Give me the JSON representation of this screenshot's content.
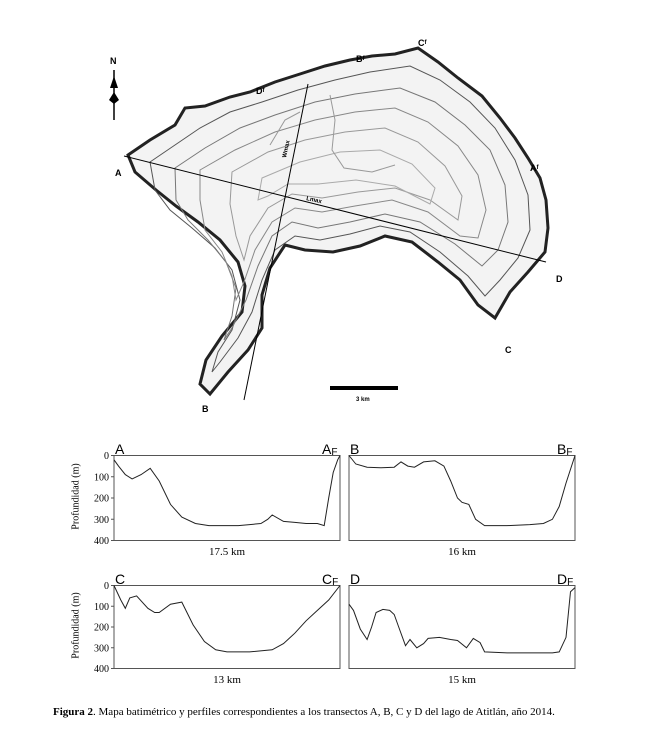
{
  "map": {
    "north_label": "N",
    "transect_labels": {
      "A": "A",
      "B": "B",
      "C": "C",
      "D": "D",
      "AF": "Aᶠ",
      "BF": "Bᶠ",
      "CF": "Cᶠ",
      "DF": "Dᶠ"
    },
    "line_labels": {
      "wmax": "Wmax",
      "lmax": "Lmax"
    },
    "scale_label": "3 km"
  },
  "chart_data": [
    {
      "type": "line",
      "start_label": "A",
      "end_label": "A",
      "end_sub": "F",
      "xlabel": "17.5 km",
      "ylabel": "Profundidad (m)",
      "ylim": [
        0,
        400
      ],
      "yticks": [
        0,
        100,
        200,
        300,
        400
      ],
      "series": [
        {
          "x": [
            0,
            0.02,
            0.05,
            0.08,
            0.12,
            0.16,
            0.2,
            0.25,
            0.3,
            0.36,
            0.42,
            0.48,
            0.55,
            0.6,
            0.65,
            0.68,
            0.7,
            0.75,
            0.8,
            0.85,
            0.9,
            0.93,
            0.95,
            0.97,
            0.99,
            1.0
          ],
          "values": [
            20,
            50,
            90,
            110,
            90,
            60,
            120,
            230,
            290,
            320,
            330,
            330,
            330,
            325,
            320,
            300,
            280,
            310,
            315,
            320,
            320,
            330,
            200,
            80,
            20,
            0
          ]
        }
      ]
    },
    {
      "type": "line",
      "start_label": "B",
      "end_label": "B",
      "end_sub": "F",
      "xlabel": "16 km",
      "ylabel": "",
      "ylim": [
        0,
        400
      ],
      "yticks": [],
      "series": [
        {
          "x": [
            0,
            0.03,
            0.08,
            0.14,
            0.2,
            0.23,
            0.26,
            0.29,
            0.33,
            0.38,
            0.42,
            0.45,
            0.48,
            0.5,
            0.53,
            0.56,
            0.6,
            0.7,
            0.8,
            0.86,
            0.9,
            0.93,
            0.96,
            1.0
          ],
          "values": [
            0,
            40,
            55,
            58,
            55,
            30,
            50,
            55,
            30,
            25,
            50,
            120,
            200,
            220,
            230,
            300,
            330,
            330,
            325,
            320,
            300,
            240,
            130,
            0
          ]
        }
      ]
    },
    {
      "type": "line",
      "start_label": "C",
      "end_label": "C",
      "end_sub": "F",
      "xlabel": "13 km",
      "ylabel": "Profundidad (m)",
      "ylim": [
        0,
        400
      ],
      "yticks": [
        0,
        100,
        200,
        300,
        400
      ],
      "series": [
        {
          "x": [
            0,
            0.03,
            0.05,
            0.07,
            0.1,
            0.15,
            0.18,
            0.2,
            0.25,
            0.3,
            0.35,
            0.4,
            0.45,
            0.5,
            0.6,
            0.7,
            0.75,
            0.8,
            0.85,
            0.9,
            0.95,
            1.0
          ],
          "values": [
            0,
            70,
            110,
            60,
            50,
            110,
            130,
            130,
            90,
            80,
            190,
            270,
            310,
            320,
            320,
            310,
            280,
            230,
            170,
            120,
            70,
            0
          ]
        }
      ]
    },
    {
      "type": "line",
      "start_label": "D",
      "end_label": "D",
      "end_sub": "F",
      "xlabel": "15 km",
      "ylabel": "",
      "ylim": [
        0,
        400
      ],
      "yticks": [],
      "series": [
        {
          "x": [
            0,
            0.02,
            0.05,
            0.08,
            0.1,
            0.12,
            0.15,
            0.18,
            0.2,
            0.22,
            0.25,
            0.27,
            0.3,
            0.33,
            0.35,
            0.4,
            0.45,
            0.48,
            0.52,
            0.55,
            0.58,
            0.6,
            0.7,
            0.8,
            0.9,
            0.93,
            0.96,
            0.98,
            1.0
          ],
          "values": [
            90,
            120,
            210,
            260,
            200,
            130,
            115,
            120,
            140,
            200,
            290,
            260,
            300,
            280,
            255,
            250,
            260,
            265,
            300,
            255,
            275,
            320,
            325,
            325,
            325,
            320,
            250,
            30,
            10
          ]
        }
      ]
    }
  ],
  "caption": {
    "label": "Figura 2",
    "text": ". Mapa batimétrico y perfiles correspondientes a los transectos A, B, C y D del lago de Atitlán, año 2014."
  }
}
